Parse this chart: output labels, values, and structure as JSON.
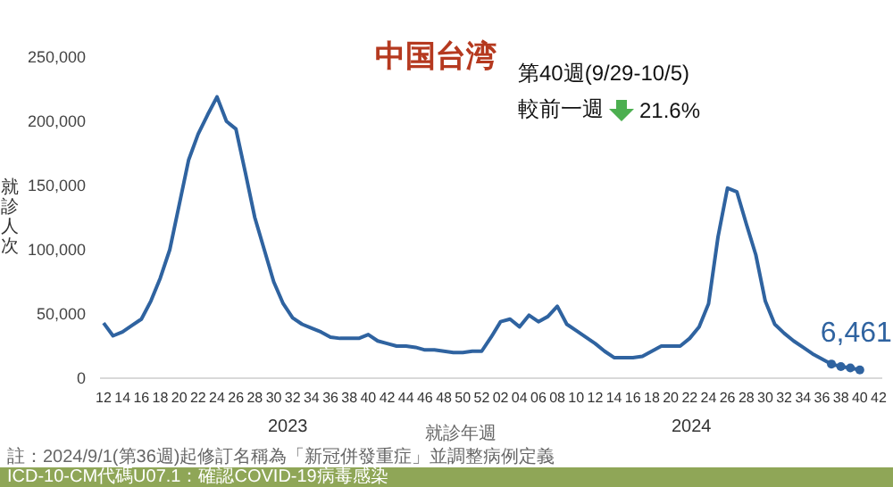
{
  "chart_data": {
    "type": "line",
    "title": "中国台湾",
    "subtitle": "第40週(9/29-10/5)",
    "ylabel": "就診人次",
    "xlabel": "就診年週",
    "annotations": [
      "2023",
      "2024",
      "較前一週 21.6%",
      "註：2024/9/1(第36週)起修訂名稱為「新冠併發重症」並調整病例定義",
      "ICD-10-CM代碼U07.1：確認COVID-19病毒感染"
    ],
    "categories": [
      "12",
      null,
      "14",
      null,
      "16",
      null,
      "18",
      null,
      "20",
      null,
      "22",
      null,
      "24",
      null,
      "26",
      null,
      "28",
      null,
      "30",
      null,
      "32",
      null,
      "34",
      null,
      "36",
      null,
      "38",
      null,
      "40",
      null,
      "42",
      null,
      "44",
      null,
      "46",
      null,
      "48",
      null,
      "50",
      null,
      "52",
      null,
      "02",
      null,
      "04",
      null,
      "06",
      null,
      "08",
      null,
      "10",
      null,
      "12",
      null,
      "14",
      null,
      "16",
      null,
      "18",
      null,
      "20",
      null,
      "22",
      null,
      "24",
      null,
      "26",
      null,
      "28",
      null,
      "30",
      null,
      "32",
      null,
      "34",
      null,
      "36",
      null,
      "38",
      null,
      "40",
      null,
      "42"
    ],
    "series": [
      {
        "color": "#2f63a0",
        "marker": "none",
        "values": [
          43000,
          33000,
          36000,
          41000,
          46000,
          60000,
          78000,
          100000,
          135000,
          170000,
          190000,
          205000,
          219000,
          200000,
          194000,
          160000,
          125000,
          100000,
          75000,
          58000,
          47000,
          42000,
          39000,
          36000,
          32000,
          31000,
          31000,
          31000,
          34000,
          29000,
          27000,
          25000,
          25000,
          24000,
          22000,
          22000,
          21000,
          20000,
          20000,
          21000,
          21000,
          32000,
          44000,
          46000,
          40000,
          49000,
          44000,
          48000,
          56000,
          42000,
          37000,
          32000,
          27000,
          21000,
          16000,
          16000,
          16000,
          17000,
          21000,
          25000,
          25000,
          25000,
          31000,
          40000,
          58000,
          110000,
          148000,
          145000,
          120000,
          96000,
          60000,
          42000,
          35000,
          29000,
          24000,
          19000,
          15000,
          11000,
          9000,
          8000,
          6461,
          null,
          null
        ]
      },
      {
        "type": "scatter",
        "color": "#2f63a0",
        "marker": "circle",
        "values": [
          null,
          null,
          null,
          null,
          null,
          null,
          null,
          null,
          null,
          null,
          null,
          null,
          null,
          null,
          null,
          null,
          null,
          null,
          null,
          null,
          null,
          null,
          null,
          null,
          null,
          null,
          null,
          null,
          null,
          null,
          null,
          null,
          null,
          null,
          null,
          null,
          null,
          null,
          null,
          null,
          null,
          null,
          null,
          null,
          null,
          null,
          null,
          null,
          null,
          null,
          null,
          null,
          null,
          null,
          null,
          null,
          null,
          null,
          null,
          null,
          null,
          null,
          null,
          null,
          null,
          null,
          null,
          null,
          null,
          null,
          null,
          null,
          null,
          null,
          null,
          null,
          null,
          11000,
          9000,
          8000,
          6461,
          null,
          null
        ],
        "value_labels": [
          null,
          null,
          null,
          null,
          null,
          null,
          null,
          null,
          null,
          null,
          null,
          null,
          null,
          null,
          null,
          null,
          null,
          null,
          null,
          null,
          null,
          null,
          null,
          null,
          null,
          null,
          null,
          null,
          null,
          null,
          null,
          null,
          null,
          null,
          null,
          null,
          null,
          null,
          null,
          null,
          null,
          null,
          null,
          null,
          null,
          null,
          null,
          null,
          null,
          null,
          null,
          null,
          null,
          null,
          null,
          null,
          null,
          null,
          null,
          null,
          null,
          null,
          null,
          null,
          null,
          null,
          null,
          null,
          null,
          null,
          null,
          null,
          null,
          null,
          null,
          null,
          null,
          null,
          null,
          null,
          "6,461",
          null,
          null
        ]
      }
    ],
    "ylim": [
      0,
      250000
    ],
    "yticks": [
      {
        "value": 0,
        "label": "0"
      },
      {
        "value": 50000,
        "label": "50,000"
      },
      {
        "value": 100000,
        "label": "100,000"
      },
      {
        "value": 150000,
        "label": "150,000"
      },
      {
        "value": 200000,
        "label": "200,000"
      },
      {
        "value": 250000,
        "label": "250,000"
      }
    ],
    "grid": false,
    "legend": false
  }
}
